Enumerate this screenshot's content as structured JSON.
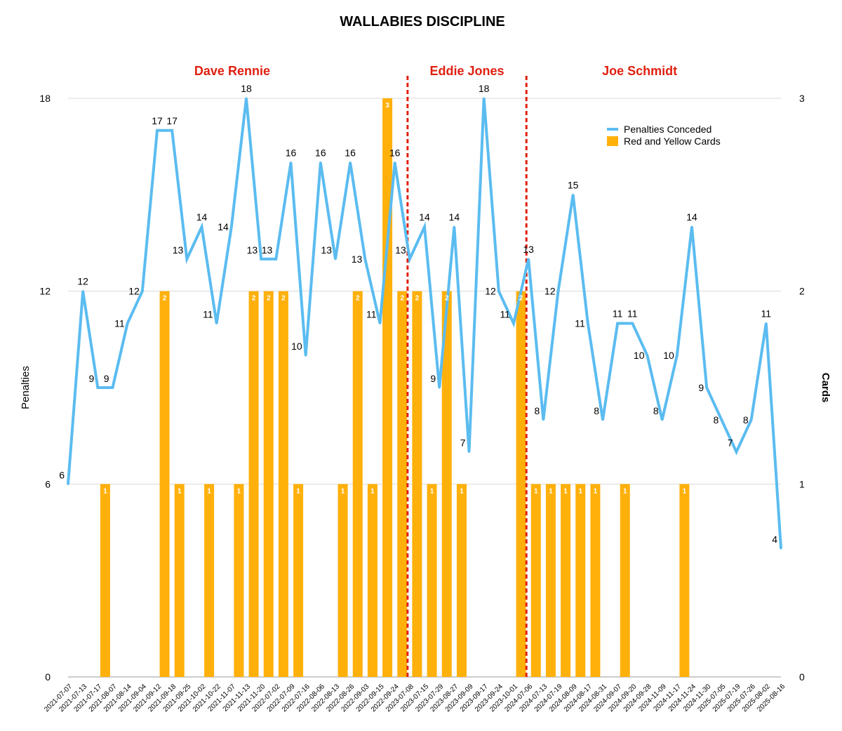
{
  "chart_data": {
    "type": "bar+line",
    "title": "WALLABIES DISCIPLINE",
    "ylabel_left": "Penalties",
    "ylabel_right": "Cards",
    "ylim_left": [
      0,
      18
    ],
    "ylim_right": [
      0,
      3
    ],
    "yticks_left": [
      "0",
      "6",
      "12",
      "18"
    ],
    "yticks_right": [
      "0",
      "1",
      "2",
      "3"
    ],
    "grid": true,
    "legend_position": "top-right",
    "colors": {
      "line": "#5bbcf0",
      "bar": "#ffb00a",
      "divider": "#e02010",
      "period_text": "#e02010"
    },
    "categories": [
      "2021-07-07",
      "2021-07-13",
      "2021-07-17",
      "2021-08-07",
      "2021-08-14",
      "2021-09-04",
      "2021-09-12",
      "2021-09-18",
      "2021-09-25",
      "2021-10-02",
      "2021-10-22",
      "2021-11-07",
      "2021-11-13",
      "2021-11-20",
      "2022-07-02",
      "2022-07-09",
      "2022-07-16",
      "2022-08-06",
      "2022-08-13",
      "2022-08-26",
      "2022-09-03",
      "2022-09-15",
      "2022-09-24",
      "2023-07-08",
      "2023-07-15",
      "2023-07-29",
      "2023-08-27",
      "2023-09-09",
      "2023-09-17",
      "2023-09-24",
      "2023-10-01",
      "2024-07-06",
      "2024-07-13",
      "2024-07-19",
      "2024-08-09",
      "2024-08-17",
      "2024-08-31",
      "2024-09-07",
      "2024-09-20",
      "2024-09-28",
      "2024-11-09",
      "2024-11-17",
      "2024-11-24",
      "2024-11-30",
      "2025-07-05",
      "2025-07-19",
      "2025-07-26",
      "2025-08-02",
      "2025-08-16"
    ],
    "series": [
      {
        "name": "Penalties Conceded",
        "type": "line",
        "axis": "left",
        "values": [
          6,
          12,
          9,
          9,
          11,
          12,
          17,
          17,
          13,
          14,
          11,
          14,
          18,
          13,
          13,
          16,
          10,
          16,
          13,
          16,
          13,
          11,
          16,
          13,
          14,
          9,
          14,
          7,
          18,
          12,
          11,
          13,
          8,
          12,
          15,
          11,
          8,
          11,
          11,
          10,
          8,
          10,
          14,
          9,
          8,
          7,
          8,
          11,
          4
        ]
      },
      {
        "name": "Red and Yellow Cards",
        "type": "bar",
        "axis": "right",
        "values": [
          null,
          null,
          1,
          null,
          null,
          null,
          2,
          1,
          null,
          1,
          null,
          1,
          2,
          2,
          2,
          1,
          null,
          null,
          1,
          2,
          1,
          3,
          2,
          2,
          1,
          2,
          1,
          null,
          null,
          null,
          2,
          1,
          1,
          1,
          1,
          1,
          null,
          1,
          null,
          null,
          null,
          1,
          null,
          null,
          null,
          null,
          null,
          null,
          null
        ]
      }
    ],
    "periods": [
      {
        "label": "Dave Rennie"
      },
      {
        "label": "Eddie Jones"
      },
      {
        "label": "Joe Schmidt"
      }
    ]
  }
}
